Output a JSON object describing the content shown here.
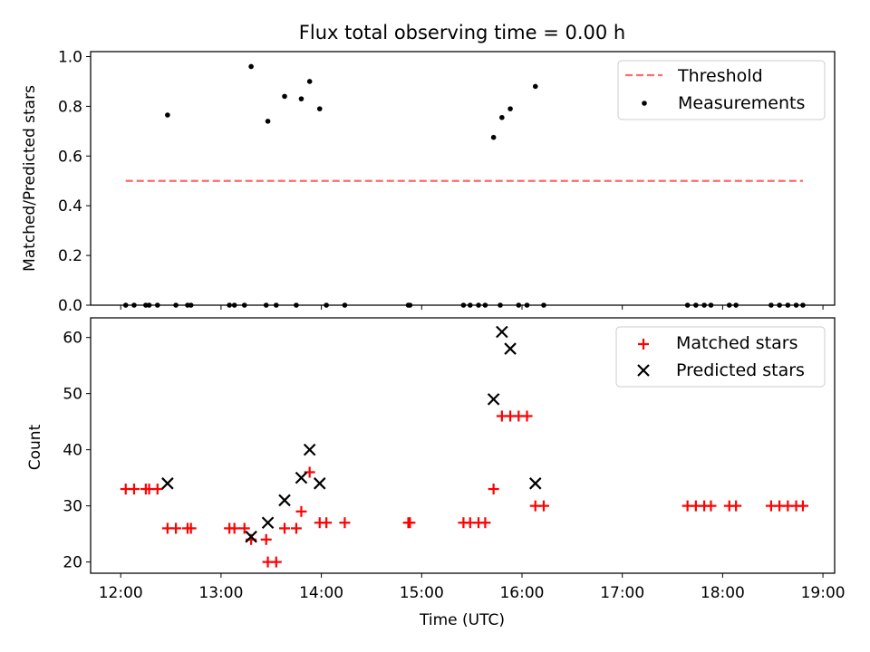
{
  "title": "Flux total observing time = 0.00 h",
  "chart_data": [
    {
      "type": "scatter",
      "ylabel": "Matched/Predicted stars",
      "xlim": [
        "11:42",
        "19:07"
      ],
      "ylim": [
        0,
        1.02
      ],
      "xticks": [
        "12:00",
        "13:00",
        "14:00",
        "15:00",
        "16:00",
        "17:00",
        "18:00",
        "19:00"
      ],
      "yticks": [
        "0.0",
        "0.2",
        "0.4",
        "0.6",
        "0.8",
        "1.0"
      ],
      "legend_position": "top-right",
      "colors": {
        "threshold": "#ff6b6b",
        "measurements": "#000000"
      },
      "threshold": {
        "name": "Threshold",
        "y": 0.5,
        "x_start": "12:03",
        "x_end": "18:48"
      },
      "series": [
        {
          "name": "Measurements",
          "points": [
            [
              "12:03",
              0
            ],
            [
              "12:08",
              0
            ],
            [
              "12:15",
              0
            ],
            [
              "12:17",
              0
            ],
            [
              "12:22",
              0
            ],
            [
              "12:28",
              0.765
            ],
            [
              "12:33",
              0
            ],
            [
              "12:40",
              0
            ],
            [
              "12:42",
              0
            ],
            [
              "13:05",
              0
            ],
            [
              "13:08",
              0
            ],
            [
              "13:14",
              0
            ],
            [
              "13:18",
              0.96
            ],
            [
              "13:27",
              0
            ],
            [
              "13:28",
              0.74
            ],
            [
              "13:33",
              0
            ],
            [
              "13:38",
              0.84
            ],
            [
              "13:45",
              0
            ],
            [
              "13:48",
              0.83
            ],
            [
              "13:53",
              0.9
            ],
            [
              "13:59",
              0.79
            ],
            [
              "14:03",
              0
            ],
            [
              "14:14",
              0
            ],
            [
              "14:52",
              0
            ],
            [
              "14:53",
              0
            ],
            [
              "15:25",
              0
            ],
            [
              "15:29",
              0
            ],
            [
              "15:34",
              0
            ],
            [
              "15:38",
              0
            ],
            [
              "15:43",
              0.675
            ],
            [
              "15:47",
              0
            ],
            [
              "15:48",
              0.755
            ],
            [
              "15:53",
              0.79
            ],
            [
              "15:58",
              0
            ],
            [
              "16:03",
              0
            ],
            [
              "16:08",
              0.88
            ],
            [
              "16:13",
              0
            ],
            [
              "17:39",
              0
            ],
            [
              "17:44",
              0
            ],
            [
              "17:49",
              0
            ],
            [
              "17:53",
              0
            ],
            [
              "18:04",
              0
            ],
            [
              "18:08",
              0
            ],
            [
              "18:29",
              0
            ],
            [
              "18:34",
              0
            ],
            [
              "18:39",
              0
            ],
            [
              "18:44",
              0
            ],
            [
              "18:48",
              0
            ]
          ]
        }
      ]
    },
    {
      "type": "scatter",
      "xlabel": "Time (UTC)",
      "ylabel": "Count",
      "xlim": [
        "11:42",
        "19:07"
      ],
      "ylim": [
        18,
        63.5
      ],
      "xticks": [
        "12:00",
        "13:00",
        "14:00",
        "15:00",
        "16:00",
        "17:00",
        "18:00",
        "19:00"
      ],
      "yticks": [
        "20",
        "30",
        "40",
        "50",
        "60"
      ],
      "legend_position": "top-right",
      "colors": {
        "matched": "#ff0000",
        "predicted": "#000000"
      },
      "series": [
        {
          "name": "Matched stars",
          "marker": "plus",
          "points": [
            [
              "12:03",
              33
            ],
            [
              "12:08",
              33
            ],
            [
              "12:15",
              33
            ],
            [
              "12:17",
              33
            ],
            [
              "12:22",
              33
            ],
            [
              "12:28",
              26
            ],
            [
              "12:33",
              26
            ],
            [
              "12:40",
              26
            ],
            [
              "12:42",
              26
            ],
            [
              "13:05",
              26
            ],
            [
              "13:08",
              26
            ],
            [
              "13:14",
              26
            ],
            [
              "13:18",
              24
            ],
            [
              "13:27",
              24
            ],
            [
              "13:28",
              20
            ],
            [
              "13:33",
              20
            ],
            [
              "13:38",
              26
            ],
            [
              "13:45",
              26
            ],
            [
              "13:48",
              29
            ],
            [
              "13:53",
              36
            ],
            [
              "13:59",
              27
            ],
            [
              "14:03",
              27
            ],
            [
              "14:14",
              27
            ],
            [
              "14:52",
              27
            ],
            [
              "14:53",
              27
            ],
            [
              "15:25",
              27
            ],
            [
              "15:29",
              27
            ],
            [
              "15:34",
              27
            ],
            [
              "15:38",
              27
            ],
            [
              "15:43",
              33
            ],
            [
              "15:48",
              46
            ],
            [
              "15:53",
              46
            ],
            [
              "15:58",
              46
            ],
            [
              "16:03",
              46
            ],
            [
              "16:08",
              30
            ],
            [
              "16:13",
              30
            ],
            [
              "17:39",
              30
            ],
            [
              "17:44",
              30
            ],
            [
              "17:49",
              30
            ],
            [
              "17:53",
              30
            ],
            [
              "18:04",
              30
            ],
            [
              "18:08",
              30
            ],
            [
              "18:29",
              30
            ],
            [
              "18:34",
              30
            ],
            [
              "18:39",
              30
            ],
            [
              "18:44",
              30
            ],
            [
              "18:48",
              30
            ]
          ]
        },
        {
          "name": "Predicted stars",
          "marker": "x",
          "points": [
            [
              "12:28",
              34
            ],
            [
              "13:18",
              24.5
            ],
            [
              "13:28",
              27
            ],
            [
              "13:38",
              31
            ],
            [
              "13:48",
              35
            ],
            [
              "13:53",
              40
            ],
            [
              "13:59",
              34
            ],
            [
              "15:43",
              49
            ],
            [
              "15:48",
              61
            ],
            [
              "15:53",
              58
            ],
            [
              "16:08",
              34
            ]
          ]
        }
      ]
    }
  ]
}
